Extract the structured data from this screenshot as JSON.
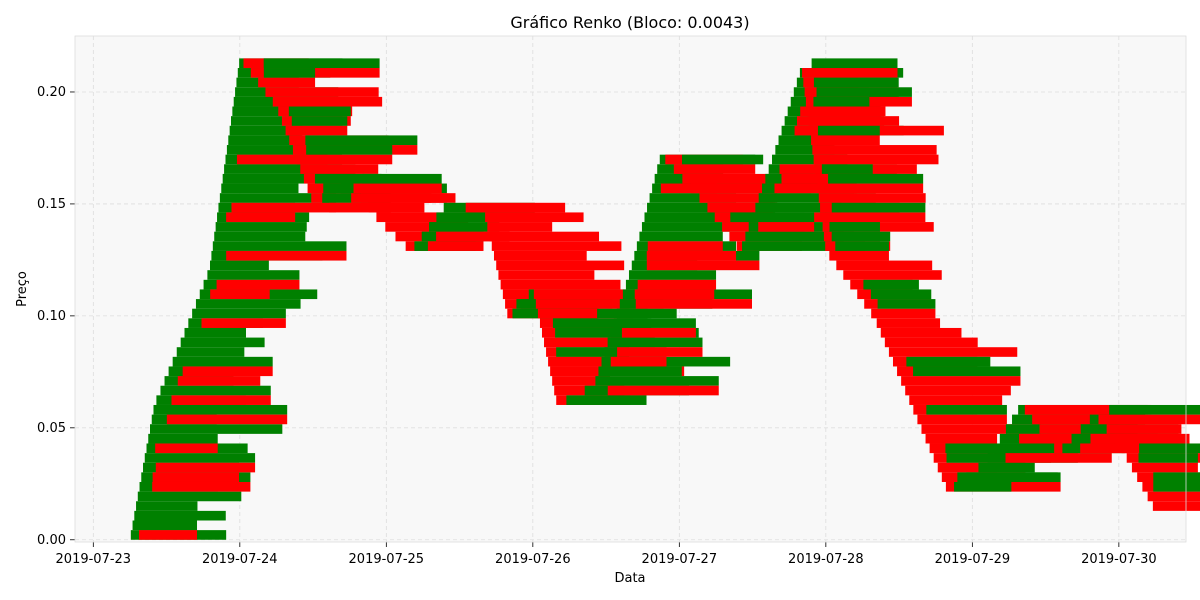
{
  "chart_data": {
    "type": "renko",
    "title": "Gráfico Renko (Bloco: 0.0043)",
    "brick_size": 0.0043,
    "xlabel": "Data",
    "ylabel": "Preço",
    "x_ticks": [
      "2019-07-23",
      "2019-07-24",
      "2019-07-25",
      "2019-07-26",
      "2019-07-27",
      "2019-07-28",
      "2019-07-29",
      "2019-07-30"
    ],
    "y_ticks": [
      "0.00",
      "0.05",
      "0.10",
      "0.15",
      "0.20"
    ],
    "xlim": [
      "2019-07-22T21:00",
      "2019-07-30T11:00"
    ],
    "ylim": [
      -0.001,
      0.225
    ],
    "grid": true,
    "colors": {
      "up": "#008000",
      "down": "#ff0000",
      "background": "#f8f8f8",
      "grid": "#dddddd"
    },
    "trend_path": [
      [
        "2019-07-23T06:00",
        0.0
      ],
      [
        "2019-07-23T10:00",
        0.06
      ],
      [
        "2019-07-23T14:00",
        0.085
      ],
      [
        "2019-07-23T19:00",
        0.12
      ],
      [
        "2019-07-23T22:00",
        0.175
      ],
      [
        "2019-07-24T00:00",
        0.214
      ],
      [
        "2019-07-24T06:00",
        0.195
      ],
      [
        "2019-07-24T12:00",
        0.15
      ],
      [
        "2019-07-24T18:00",
        0.16
      ],
      [
        "2019-07-24T23:00",
        0.14
      ],
      [
        "2019-07-25T04:00",
        0.13
      ],
      [
        "2019-07-25T10:00",
        0.15
      ],
      [
        "2019-07-25T16:00",
        0.145
      ],
      [
        "2019-07-25T20:00",
        0.1
      ],
      [
        "2019-07-26T00:00",
        0.11
      ],
      [
        "2019-07-26T04:00",
        0.06
      ],
      [
        "2019-07-26T10:00",
        0.07
      ],
      [
        "2019-07-26T16:00",
        0.12
      ],
      [
        "2019-07-26T21:00",
        0.17
      ],
      [
        "2019-07-27T04:00",
        0.15
      ],
      [
        "2019-07-27T10:00",
        0.13
      ],
      [
        "2019-07-27T16:00",
        0.175
      ],
      [
        "2019-07-27T20:00",
        0.209
      ],
      [
        "2019-07-28T00:00",
        0.13
      ],
      [
        "2019-07-28T08:00",
        0.1
      ],
      [
        "2019-07-28T14:00",
        0.06
      ],
      [
        "2019-07-28T20:00",
        0.02
      ],
      [
        "2019-07-29T02:00",
        0.035
      ],
      [
        "2019-07-29T08:00",
        0.06
      ],
      [
        "2019-07-29T14:00",
        0.04
      ],
      [
        "2019-07-29T20:00",
        0.055
      ],
      [
        "2019-07-30T00:00",
        0.045
      ],
      [
        "2019-07-30T06:00",
        0.013
      ]
    ],
    "brick_span_hours": 15
  }
}
